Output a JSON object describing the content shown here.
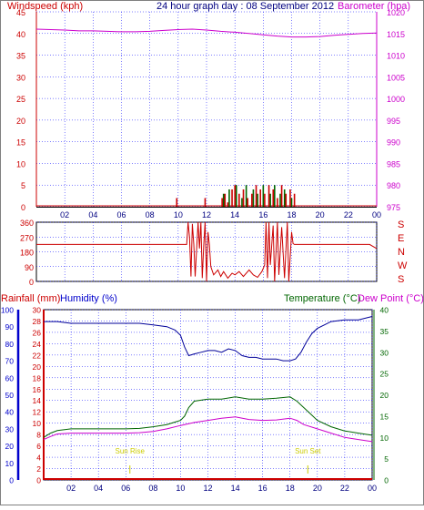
{
  "header": {
    "left": "Windspeed (kph)",
    "center": "24 hour graph day : 08 September 2012",
    "right": "Barometer (hpa)"
  },
  "colors": {
    "frame": "#000000",
    "grid": "#0000ff",
    "wind": "#cc0000",
    "gust": "#006600",
    "baro": "#cc00cc",
    "dir": "#cc0000",
    "rain": "#cc0000",
    "humidity": "#000099",
    "temp": "#006600",
    "dew": "#cc00cc",
    "sun": "#cccc00",
    "axis_left": "#cc0000",
    "axis_right_baro": "#cc00cc",
    "axis_hum": "#0000cc",
    "axis_temp": "#006600",
    "time_labels": "#000080"
  },
  "x_ticks": [
    "02",
    "04",
    "06",
    "08",
    "10",
    "12",
    "14",
    "16",
    "18",
    "20",
    "22",
    "00"
  ],
  "chart_data": [
    {
      "id": "wind-baro",
      "type": "line",
      "x_label_time": "hour",
      "xlim": [
        0,
        24
      ],
      "y_left": {
        "label": "Windspeed (kph)",
        "lim": [
          0,
          45
        ],
        "ticks": [
          0,
          5,
          10,
          15,
          20,
          25,
          30,
          35,
          40,
          45
        ]
      },
      "y_right": {
        "label": "Barometer (hpa)",
        "lim": [
          975,
          1020
        ],
        "ticks": [
          975,
          980,
          985,
          990,
          995,
          1000,
          1005,
          1010,
          1015,
          1020
        ]
      },
      "series": [
        {
          "name": "Barometer (hpa)",
          "axis": "right",
          "points": [
            [
              0,
              1016.0
            ],
            [
              1,
              1015.9
            ],
            [
              2,
              1015.8
            ],
            [
              3,
              1015.6
            ],
            [
              4,
              1015.6
            ],
            [
              5,
              1015.5
            ],
            [
              6,
              1015.4
            ],
            [
              7,
              1015.4
            ],
            [
              8,
              1015.5
            ],
            [
              9,
              1015.7
            ],
            [
              10,
              1015.9
            ],
            [
              11,
              1016.0
            ],
            [
              12,
              1015.8
            ],
            [
              13,
              1015.5
            ],
            [
              14,
              1015.3
            ],
            [
              15,
              1015.0
            ],
            [
              16,
              1014.7
            ],
            [
              17,
              1014.4
            ],
            [
              18,
              1014.2
            ],
            [
              19,
              1014.2
            ],
            [
              20,
              1014.3
            ],
            [
              21,
              1014.6
            ],
            [
              22,
              1014.8
            ],
            [
              23,
              1015.0
            ],
            [
              24,
              1015.1
            ]
          ]
        },
        {
          "name": "Windspeed",
          "axis": "left",
          "bars": [
            [
              9.9,
              2
            ],
            [
              11.9,
              2
            ],
            [
              13.1,
              2
            ],
            [
              13.3,
              3
            ],
            [
              13.5,
              1
            ],
            [
              13.8,
              4
            ],
            [
              14.0,
              5
            ],
            [
              14.3,
              3
            ],
            [
              14.6,
              4
            ],
            [
              14.9,
              2
            ],
            [
              15.2,
              3
            ],
            [
              15.5,
              5
            ],
            [
              15.8,
              4
            ],
            [
              16.1,
              3
            ],
            [
              16.4,
              5
            ],
            [
              16.7,
              4
            ],
            [
              17.0,
              2
            ],
            [
              17.3,
              5
            ],
            [
              17.6,
              3
            ],
            [
              17.9,
              4
            ],
            [
              18.2,
              3
            ]
          ]
        },
        {
          "name": "Gust",
          "axis": "left",
          "bars": [
            [
              13.2,
              3
            ],
            [
              13.6,
              4
            ],
            [
              14.1,
              5
            ],
            [
              14.5,
              2
            ],
            [
              14.8,
              5
            ],
            [
              15.3,
              4
            ],
            [
              15.6,
              3
            ],
            [
              16.0,
              5
            ],
            [
              16.5,
              3
            ],
            [
              16.8,
              5
            ],
            [
              17.2,
              3
            ],
            [
              17.5,
              4
            ],
            [
              18.0,
              2
            ]
          ]
        }
      ]
    },
    {
      "id": "wind-direction",
      "type": "line",
      "xlim": [
        0,
        24
      ],
      "y_left": {
        "lim": [
          0,
          360
        ],
        "ticks": [
          0,
          90,
          180,
          270,
          360
        ]
      },
      "y_right_labels": [
        "S",
        "E",
        "N",
        "W",
        "S"
      ],
      "series": [
        {
          "name": "Wind direction",
          "points": [
            [
              0,
              225
            ],
            [
              10.6,
              225
            ],
            [
              10.7,
              360
            ],
            [
              10.8,
              270
            ],
            [
              10.9,
              30
            ],
            [
              11.0,
              350
            ],
            [
              11.1,
              225
            ],
            [
              11.2,
              30
            ],
            [
              11.4,
              360
            ],
            [
              11.5,
              200
            ],
            [
              11.6,
              360
            ],
            [
              11.7,
              20
            ],
            [
              11.8,
              220
            ],
            [
              11.9,
              360
            ],
            [
              12.0,
              0
            ],
            [
              12.1,
              300
            ],
            [
              12.2,
              225
            ],
            [
              12.3,
              90
            ],
            [
              12.5,
              40
            ],
            [
              12.8,
              70
            ],
            [
              13.0,
              30
            ],
            [
              13.2,
              60
            ],
            [
              13.5,
              20
            ],
            [
              13.8,
              50
            ],
            [
              14.0,
              40
            ],
            [
              14.3,
              60
            ],
            [
              14.6,
              30
            ],
            [
              15.0,
              70
            ],
            [
              15.3,
              40
            ],
            [
              15.6,
              25
            ],
            [
              15.9,
              60
            ],
            [
              16.1,
              100
            ],
            [
              16.2,
              360
            ],
            [
              16.3,
              20
            ],
            [
              16.4,
              360
            ],
            [
              16.5,
              100
            ],
            [
              16.7,
              340
            ],
            [
              16.8,
              0
            ],
            [
              17.0,
              360
            ],
            [
              17.1,
              40
            ],
            [
              17.3,
              330
            ],
            [
              17.5,
              20
            ],
            [
              17.7,
              360
            ],
            [
              17.8,
              0
            ],
            [
              18.0,
              300
            ],
            [
              18.1,
              230
            ],
            [
              18.2,
              225
            ],
            [
              23.5,
              225
            ],
            [
              24,
              200
            ]
          ]
        }
      ]
    },
    {
      "id": "temp-hum-rain",
      "type": "line",
      "xlim": [
        0,
        24
      ],
      "labels": {
        "rainfall": "Rainfall (mm)",
        "humidity": "Humidity (%)",
        "temperature": "Temperature (°C)",
        "dewpoint": "Dew Point (°C)"
      },
      "y_rain": {
        "lim": [
          0,
          30
        ],
        "ticks": [
          0,
          2,
          4,
          6,
          8,
          10,
          12,
          14,
          16,
          18,
          20,
          22,
          24,
          26,
          28,
          30
        ]
      },
      "y_hum": {
        "lim": [
          0,
          100
        ],
        "ticks": [
          0,
          10,
          20,
          30,
          40,
          50,
          60,
          70,
          80,
          90,
          100
        ]
      },
      "y_temp": {
        "lim": [
          0,
          40
        ],
        "ticks": [
          0,
          5,
          10,
          15,
          20,
          25,
          30,
          35,
          40
        ]
      },
      "annotations": [
        {
          "text": "Sun Rise",
          "x": 6.3
        },
        {
          "text": "Sun Set",
          "x": 19.3
        }
      ],
      "series": [
        {
          "name": "Humidity (%)",
          "axis": "hum",
          "points": [
            [
              0,
              93
            ],
            [
              1,
              93
            ],
            [
              2,
              92
            ],
            [
              3,
              92
            ],
            [
              4,
              92
            ],
            [
              5,
              92
            ],
            [
              6,
              92
            ],
            [
              7,
              92
            ],
            [
              8,
              91
            ],
            [
              9,
              90
            ],
            [
              9.6,
              88
            ],
            [
              10,
              85
            ],
            [
              10.3,
              78
            ],
            [
              10.6,
              73
            ],
            [
              11,
              74
            ],
            [
              11.5,
              75
            ],
            [
              12,
              76
            ],
            [
              12.5,
              76
            ],
            [
              13,
              75
            ],
            [
              13.5,
              77
            ],
            [
              14,
              76
            ],
            [
              14.5,
              73
            ],
            [
              15,
              72
            ],
            [
              15.5,
              72
            ],
            [
              16,
              71
            ],
            [
              16.5,
              71
            ],
            [
              17,
              71
            ],
            [
              17.5,
              70
            ],
            [
              18,
              70
            ],
            [
              18.4,
              71
            ],
            [
              18.8,
              75
            ],
            [
              19.2,
              81
            ],
            [
              19.6,
              86
            ],
            [
              20,
              89
            ],
            [
              20.5,
              91
            ],
            [
              21,
              93
            ],
            [
              22,
              94
            ],
            [
              23,
              94
            ],
            [
              24,
              96
            ]
          ]
        },
        {
          "name": "Temperature (°C)",
          "axis": "temp",
          "points": [
            [
              0,
              10.0
            ],
            [
              0.5,
              11.0
            ],
            [
              1,
              11.6
            ],
            [
              2,
              12.0
            ],
            [
              3,
              12.0
            ],
            [
              4,
              12.0
            ],
            [
              5,
              12.0
            ],
            [
              6,
              12.0
            ],
            [
              7,
              12.1
            ],
            [
              8,
              12.5
            ],
            [
              9,
              13.0
            ],
            [
              9.5,
              13.5
            ],
            [
              10,
              14.0
            ],
            [
              10.3,
              15.0
            ],
            [
              10.6,
              17.0
            ],
            [
              11,
              18.5
            ],
            [
              12,
              19.0
            ],
            [
              13,
              19.0
            ],
            [
              14,
              19.5
            ],
            [
              15,
              19.0
            ],
            [
              16,
              19.0
            ],
            [
              17,
              19.2
            ],
            [
              18,
              19.5
            ],
            [
              18.5,
              18.5
            ],
            [
              19,
              17.0
            ],
            [
              19.5,
              15.5
            ],
            [
              20,
              14.0
            ],
            [
              21,
              12.5
            ],
            [
              22,
              11.5
            ],
            [
              23,
              11.0
            ],
            [
              24,
              10.5
            ]
          ]
        },
        {
          "name": "Dew Point (°C)",
          "axis": "temp",
          "points": [
            [
              0,
              9.5
            ],
            [
              0.5,
              10.2
            ],
            [
              1,
              10.8
            ],
            [
              2,
              11.0
            ],
            [
              3,
              11.0
            ],
            [
              4,
              11.0
            ],
            [
              5,
              11.0
            ],
            [
              6,
              11.0
            ],
            [
              7,
              11.1
            ],
            [
              8,
              11.4
            ],
            [
              9,
              12.0
            ],
            [
              10,
              12.8
            ],
            [
              11,
              13.5
            ],
            [
              12,
              14.0
            ],
            [
              13,
              14.5
            ],
            [
              14,
              14.8
            ],
            [
              15,
              14.2
            ],
            [
              16,
              14.0
            ],
            [
              17,
              14.1
            ],
            [
              18,
              14.5
            ],
            [
              18.5,
              14.0
            ],
            [
              19,
              13.0
            ],
            [
              20,
              12.0
            ],
            [
              21,
              11.0
            ],
            [
              22,
              10.0
            ],
            [
              23,
              9.5
            ],
            [
              24,
              9.0
            ]
          ]
        },
        {
          "name": "Rainfall (mm)",
          "axis": "rain",
          "points": [
            [
              0,
              0
            ],
            [
              24,
              0
            ]
          ]
        }
      ]
    }
  ]
}
